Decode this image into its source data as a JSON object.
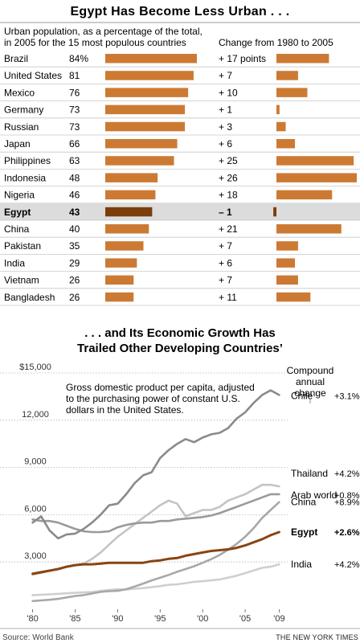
{
  "colors": {
    "bar": "#cc7a33",
    "bar_highlight": "#7a3d0c",
    "highlight_row_bg": "#dcdcdc",
    "row_divider": "#c8c8c8",
    "grid": "#b5b5b5",
    "text": "#222222"
  },
  "chart_data": [
    {
      "type": "bar",
      "title": "Egypt Has Become Less Urban . . .",
      "subtitle": "Urban population, as a percentage of the total, in 2005 for the 15 most populous countries",
      "subtitle_lines": [
        "Urban population, as a percentage of the total,",
        "in 2005 for the 15 most populous countries"
      ],
      "change_header": "Change  from 1980 to 2005",
      "highlight": "Egypt",
      "rows": [
        {
          "country": "Brazil",
          "value_label": "84%",
          "value": 84,
          "change_label": "+ 17 points",
          "change": 17
        },
        {
          "country": "United States",
          "value_label": "81",
          "value": 81,
          "change_label": "+ 7",
          "change": 7
        },
        {
          "country": "Mexico",
          "value_label": "76",
          "value": 76,
          "change_label": "+ 10",
          "change": 10
        },
        {
          "country": "Germany",
          "value_label": "73",
          "value": 73,
          "change_label": "+ 1",
          "change": 1
        },
        {
          "country": "Russian",
          "value_label": "73",
          "value": 73,
          "change_label": "+ 3",
          "change": 3
        },
        {
          "country": "Japan",
          "value_label": "66",
          "value": 66,
          "change_label": "+ 6",
          "change": 6
        },
        {
          "country": "Philippines",
          "value_label": "63",
          "value": 63,
          "change_label": "+ 25",
          "change": 25
        },
        {
          "country": "Indonesia",
          "value_label": "48",
          "value": 48,
          "change_label": "+ 26",
          "change": 26
        },
        {
          "country": "Nigeria",
          "value_label": "46",
          "value": 46,
          "change_label": "+ 18",
          "change": 18
        },
        {
          "country": "Egypt",
          "value_label": "43",
          "value": 43,
          "change_label": "– 1",
          "change": -1
        },
        {
          "country": "China",
          "value_label": "40",
          "value": 40,
          "change_label": "+ 21",
          "change": 21
        },
        {
          "country": "Pakistan",
          "value_label": "35",
          "value": 35,
          "change_label": "+ 7",
          "change": 7
        },
        {
          "country": "India",
          "value_label": "29",
          "value": 29,
          "change_label": "+ 6",
          "change": 6
        },
        {
          "country": "Vietnam",
          "value_label": "26",
          "value": 26,
          "change_label": "+ 7",
          "change": 7
        },
        {
          "country": "Bangladesh",
          "value_label": "26",
          "value": 26,
          "change_label": "+ 11",
          "change": 11
        }
      ]
    },
    {
      "type": "line",
      "title_lines": [
        ". . . and Its Economic Growth Has",
        "Trailed Other Developing Countries’"
      ],
      "annotation_lines": [
        "Gross domestic product per capita, adjusted",
        "to the purchasing power of constant U.S.",
        "dollars in the United States."
      ],
      "growth_header_lines": [
        "Compound",
        "annual",
        "change"
      ],
      "ylim": [
        0,
        15000
      ],
      "xlim": [
        1979,
        2010
      ],
      "yticks": [
        {
          "value": 15000,
          "label": "$15,000"
        },
        {
          "value": 12000,
          "label": "12,000"
        },
        {
          "value": 9000,
          "label": "9,000"
        },
        {
          "value": 6000,
          "label": "6,000"
        },
        {
          "value": 3000,
          "label": "3,000"
        }
      ],
      "xticks": [
        {
          "value": 1980,
          "label": "'80"
        },
        {
          "value": 1985,
          "label": "'85"
        },
        {
          "value": 1990,
          "label": "'90"
        },
        {
          "value": 1995,
          "label": "'95"
        },
        {
          "value": 2000,
          "label": "'00"
        },
        {
          "value": 2005,
          "label": "'05"
        },
        {
          "value": 2009,
          "label": "'09"
        }
      ],
      "x": [
        1980,
        1981,
        1982,
        1983,
        1984,
        1985,
        1986,
        1987,
        1988,
        1989,
        1990,
        1991,
        1992,
        1993,
        1994,
        1995,
        1996,
        1997,
        1998,
        1999,
        2000,
        2001,
        2002,
        2003,
        2004,
        2005,
        2006,
        2007,
        2008,
        2009
      ],
      "series": [
        {
          "name": "Chile",
          "growth": "+3.1%",
          "color": "#8a8a8a",
          "emphasis": false,
          "values": [
            5500,
            5900,
            5000,
            4500,
            4750,
            4800,
            5100,
            5500,
            6000,
            6600,
            6700,
            7300,
            8000,
            8500,
            8700,
            9600,
            10100,
            10500,
            10800,
            10600,
            10900,
            11100,
            11200,
            11500,
            12100,
            12500,
            13100,
            13600,
            13900,
            13600
          ]
        },
        {
          "name": "Thailand",
          "growth": "+4.2%",
          "color": "#c4c4c4",
          "emphasis": false,
          "values": [
            2200,
            2300,
            2450,
            2550,
            2700,
            2800,
            2900,
            3200,
            3600,
            4100,
            4600,
            5000,
            5400,
            5800,
            6200,
            6600,
            6900,
            6700,
            5900,
            6100,
            6300,
            6300,
            6500,
            6900,
            7100,
            7300,
            7600,
            7900,
            7900,
            7800
          ]
        },
        {
          "name": "Arab world",
          "growth": "+0.8%",
          "color": "#9a9a9a",
          "emphasis": false,
          "values": [
            5700,
            5600,
            5600,
            5500,
            5300,
            5100,
            4950,
            4900,
            4900,
            4950,
            5200,
            5350,
            5450,
            5500,
            5500,
            5600,
            5600,
            5700,
            5750,
            5800,
            5850,
            5950,
            6100,
            6300,
            6500,
            6700,
            6900,
            7100,
            7300,
            7300
          ]
        },
        {
          "name": "China",
          "growth": "+8.9%",
          "color": "#a8a8a8",
          "emphasis": false,
          "values": [
            520,
            560,
            600,
            660,
            750,
            840,
            900,
            1000,
            1100,
            1150,
            1170,
            1270,
            1440,
            1630,
            1830,
            2000,
            2180,
            2380,
            2550,
            2730,
            2950,
            3180,
            3450,
            3780,
            4150,
            4600,
            5150,
            5800,
            6300,
            6800
          ]
        },
        {
          "name": "Egypt",
          "growth": "+2.6%",
          "color": "#8a4410",
          "emphasis": true,
          "values": [
            2250,
            2350,
            2450,
            2550,
            2700,
            2800,
            2850,
            2850,
            2900,
            2950,
            2950,
            2950,
            2950,
            2950,
            3050,
            3100,
            3200,
            3250,
            3400,
            3500,
            3600,
            3700,
            3750,
            3800,
            3900,
            4050,
            4250,
            4450,
            4700,
            4900
          ]
        },
        {
          "name": "India",
          "growth": "+4.2%",
          "color": "#cfcfcf",
          "emphasis": false,
          "values": [
            900,
            920,
            950,
            980,
            1010,
            1040,
            1070,
            1090,
            1170,
            1220,
            1260,
            1250,
            1300,
            1340,
            1400,
            1470,
            1550,
            1580,
            1660,
            1740,
            1780,
            1830,
            1890,
            2010,
            2130,
            2290,
            2460,
            2630,
            2700,
            2850
          ]
        }
      ]
    }
  ],
  "source": "Source: World Bank",
  "credit": "THE NEW YORK TIMES"
}
